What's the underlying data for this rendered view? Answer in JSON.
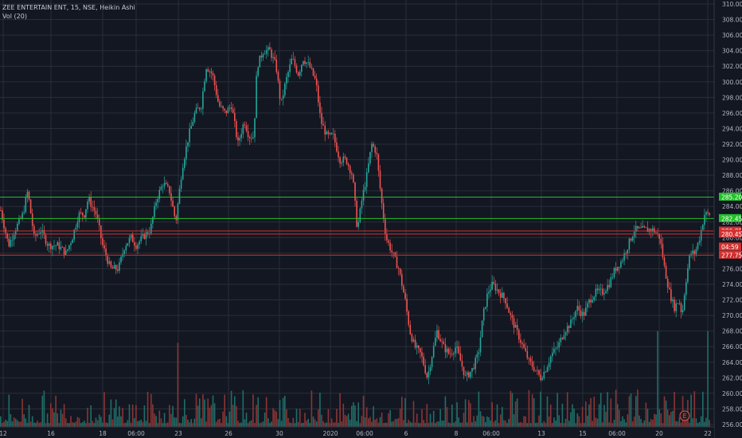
{
  "header": {
    "symbol_line": "ZEE ENTERTAIN ENT, 15, NSE, Heikin Ashi",
    "volume_line": "Vol (20)"
  },
  "colors": {
    "background": "#131722",
    "grid": "#2a2e39",
    "up": "#26a69a",
    "down": "#ef5350",
    "vol_up": "#1f6e68",
    "vol_down": "#8a3534",
    "level_green": "#22c02a",
    "level_red": "#d32f2f",
    "axis_text": "#b2b5be"
  },
  "chart_data": {
    "type": "candlestick",
    "title": "ZEE ENTERTAIN ENT, 15, NSE, Heikin Ashi",
    "y_axis": {
      "min": 256,
      "max": 310,
      "step": 2,
      "ticks": [
        "310.00",
        "308.00",
        "306.00",
        "304.00",
        "302.00",
        "300.00",
        "298.00",
        "296.00",
        "294.00",
        "292.00",
        "290.00",
        "288.00",
        "286.00",
        "284.00",
        "282.00",
        "280.00",
        "278.00",
        "276.00",
        "274.00",
        "272.00",
        "270.00",
        "268.00",
        "266.00",
        "264.00",
        "262.00",
        "260.00",
        "258.00",
        "256.00"
      ]
    },
    "x_axis": {
      "labels": [
        "12",
        "16",
        "18",
        "06:00",
        "23",
        "26",
        "30",
        "2020",
        "06:00",
        "6",
        "8",
        "06:00",
        "13",
        "15",
        "06:00",
        "20",
        "22"
      ]
    },
    "grid": true,
    "legend": "none",
    "price_path": [
      [
        0,
        283.5
      ],
      [
        10,
        279
      ],
      [
        18,
        281
      ],
      [
        28,
        283
      ],
      [
        34,
        286
      ],
      [
        42,
        280
      ],
      [
        50,
        281
      ],
      [
        60,
        279
      ],
      [
        72,
        279
      ],
      [
        82,
        278
      ],
      [
        90,
        280
      ],
      [
        98,
        283
      ],
      [
        105,
        283
      ],
      [
        110,
        285
      ],
      [
        120,
        283
      ],
      [
        128,
        279
      ],
      [
        138,
        276
      ],
      [
        148,
        276
      ],
      [
        156,
        279
      ],
      [
        164,
        280
      ],
      [
        170,
        279
      ],
      [
        178,
        280
      ],
      [
        188,
        281
      ],
      [
        196,
        285
      ],
      [
        204,
        287
      ],
      [
        212,
        286
      ],
      [
        220,
        282
      ],
      [
        228,
        289
      ],
      [
        236,
        293
      ],
      [
        244,
        296
      ],
      [
        252,
        297
      ],
      [
        258,
        302
      ],
      [
        266,
        301
      ],
      [
        274,
        297
      ],
      [
        282,
        296
      ],
      [
        290,
        297
      ],
      [
        298,
        292
      ],
      [
        306,
        295
      ],
      [
        312,
        293
      ],
      [
        318,
        293
      ],
      [
        322,
        302
      ],
      [
        330,
        304
      ],
      [
        338,
        304
      ],
      [
        346,
        302
      ],
      [
        352,
        297
      ],
      [
        358,
        300
      ],
      [
        366,
        303
      ],
      [
        374,
        301
      ],
      [
        380,
        303
      ],
      [
        388,
        302
      ],
      [
        396,
        300
      ],
      [
        402,
        295
      ],
      [
        410,
        293
      ],
      [
        418,
        293
      ],
      [
        426,
        290
      ],
      [
        434,
        290
      ],
      [
        442,
        288
      ],
      [
        448,
        281
      ],
      [
        454,
        285
      ],
      [
        460,
        288
      ],
      [
        466,
        292
      ],
      [
        472,
        291
      ],
      [
        478,
        285
      ],
      [
        484,
        280
      ],
      [
        492,
        278
      ],
      [
        500,
        276
      ],
      [
        508,
        272
      ],
      [
        514,
        268
      ],
      [
        520,
        266
      ],
      [
        528,
        265
      ],
      [
        536,
        262
      ],
      [
        542,
        265
      ],
      [
        548,
        268
      ],
      [
        556,
        266
      ],
      [
        564,
        265
      ],
      [
        572,
        266
      ],
      [
        578,
        264
      ],
      [
        584,
        262
      ],
      [
        592,
        263
      ],
      [
        600,
        265
      ],
      [
        606,
        270
      ],
      [
        612,
        273
      ],
      [
        618,
        274
      ],
      [
        626,
        273
      ],
      [
        634,
        272
      ],
      [
        640,
        270
      ],
      [
        648,
        268
      ],
      [
        656,
        266
      ],
      [
        664,
        264
      ],
      [
        672,
        263
      ],
      [
        678,
        262
      ],
      [
        684,
        263
      ],
      [
        692,
        265
      ],
      [
        700,
        266
      ],
      [
        708,
        268
      ],
      [
        716,
        269
      ],
      [
        724,
        271
      ],
      [
        732,
        270
      ],
      [
        740,
        272
      ],
      [
        748,
        273
      ],
      [
        756,
        273
      ],
      [
        764,
        274
      ],
      [
        772,
        276
      ],
      [
        780,
        277
      ],
      [
        788,
        279
      ],
      [
        796,
        281
      ],
      [
        804,
        281
      ],
      [
        812,
        281
      ],
      [
        820,
        281
      ],
      [
        828,
        280
      ],
      [
        834,
        276
      ],
      [
        840,
        273
      ],
      [
        846,
        271
      ],
      [
        852,
        272
      ],
      [
        856,
        270
      ],
      [
        860,
        274
      ],
      [
        866,
        278
      ],
      [
        872,
        278
      ],
      [
        878,
        280
      ],
      [
        884,
        283
      ],
      [
        890,
        283
      ]
    ],
    "price_levels": [
      {
        "value": 285.2,
        "label": "285.20",
        "color": "#22c02a"
      },
      {
        "value": 282.45,
        "label": "282.45",
        "color": "#22c02a"
      },
      {
        "value": 280.85,
        "label": "280.85",
        "color": "#d32f2f"
      },
      {
        "value": 280.45,
        "label": "280.45",
        "color": "#d32f2f"
      },
      {
        "value": 277.75,
        "label": "277.75",
        "color": "#d32f2f"
      }
    ],
    "price_tags": [
      {
        "value": 278.8,
        "label": "04:59",
        "color": "#d32f2f"
      }
    ],
    "volume_spikes": [
      {
        "x": 222,
        "h": 0.88
      },
      {
        "x": 825,
        "h": 1.0
      },
      {
        "x": 889,
        "h": 1.0
      }
    ],
    "events": [
      {
        "label": "E",
        "color": "#ef5350"
      }
    ]
  }
}
